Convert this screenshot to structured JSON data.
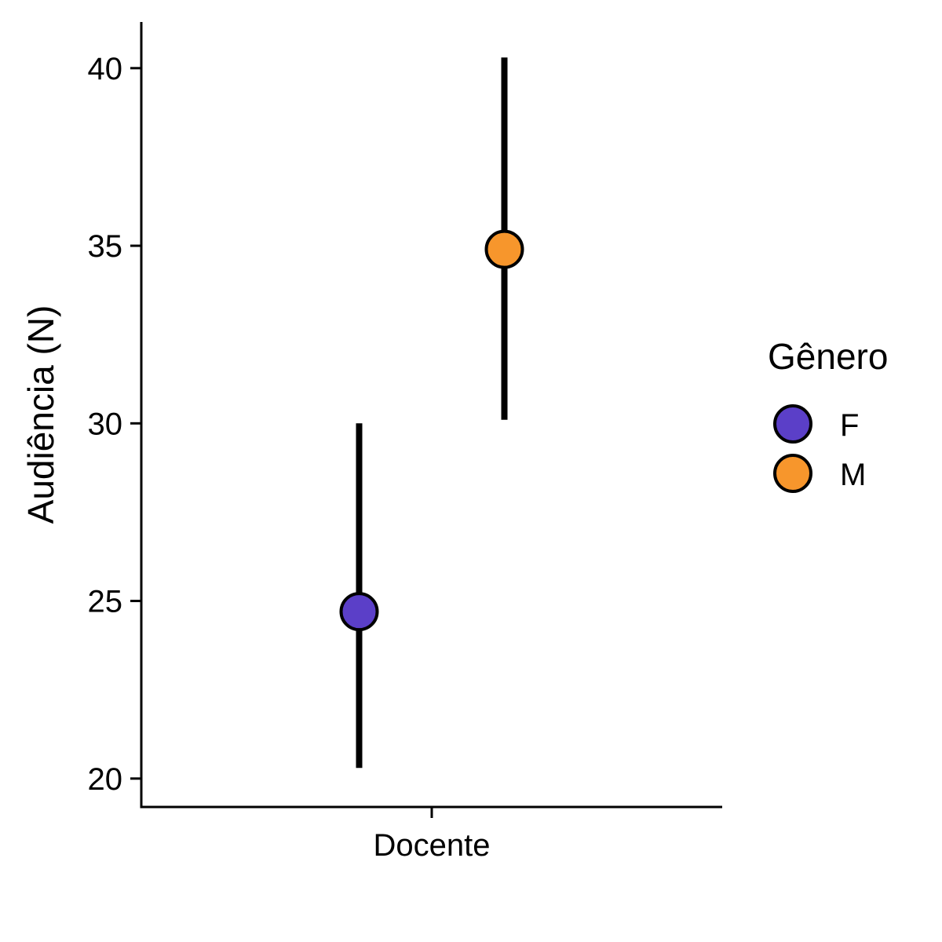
{
  "chart_data": {
    "type": "scatter",
    "categories": [
      "Docente"
    ],
    "xlabel": "",
    "ylabel": "Audiência (N)",
    "ylim": [
      19.2,
      41.3
    ],
    "yticks": [
      20,
      25,
      30,
      35,
      40
    ],
    "grid": false,
    "legend": {
      "title": "Gênero",
      "placement": "right",
      "entries": [
        "F",
        "M"
      ]
    },
    "series": [
      {
        "name": "F",
        "color": "#5b3fc8",
        "category": "Docente",
        "value": 24.7,
        "lower": 20.3,
        "upper": 30.0
      },
      {
        "name": "M",
        "color": "#f7962c",
        "category": "Docente",
        "value": 34.9,
        "lower": 30.1,
        "upper": 40.3
      }
    ]
  }
}
